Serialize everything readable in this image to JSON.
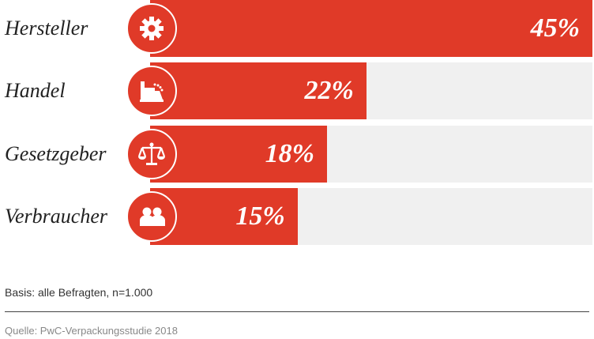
{
  "colors": {
    "bar": "#e03a28",
    "track": "#f0f0f0",
    "icon_bg": "#e03a28"
  },
  "chart_data": {
    "type": "bar",
    "orientation": "horizontal",
    "title": "",
    "xlabel": "",
    "ylabel": "",
    "xlim": [
      0,
      45
    ],
    "grid": false,
    "categories": [
      "Hersteller",
      "Handel",
      "Gesetzgeber",
      "Verbraucher"
    ],
    "values": [
      45,
      22,
      18,
      15
    ],
    "value_labels": [
      "45%",
      "22%",
      "18%",
      "15%"
    ],
    "icons": [
      "gear-icon",
      "cash-register-icon",
      "scales-icon",
      "people-icon"
    ]
  },
  "footer": {
    "basis": "Basis: alle Befragten, n=1.000",
    "source": "Quelle: PwC-Verpackungsstudie 2018"
  }
}
